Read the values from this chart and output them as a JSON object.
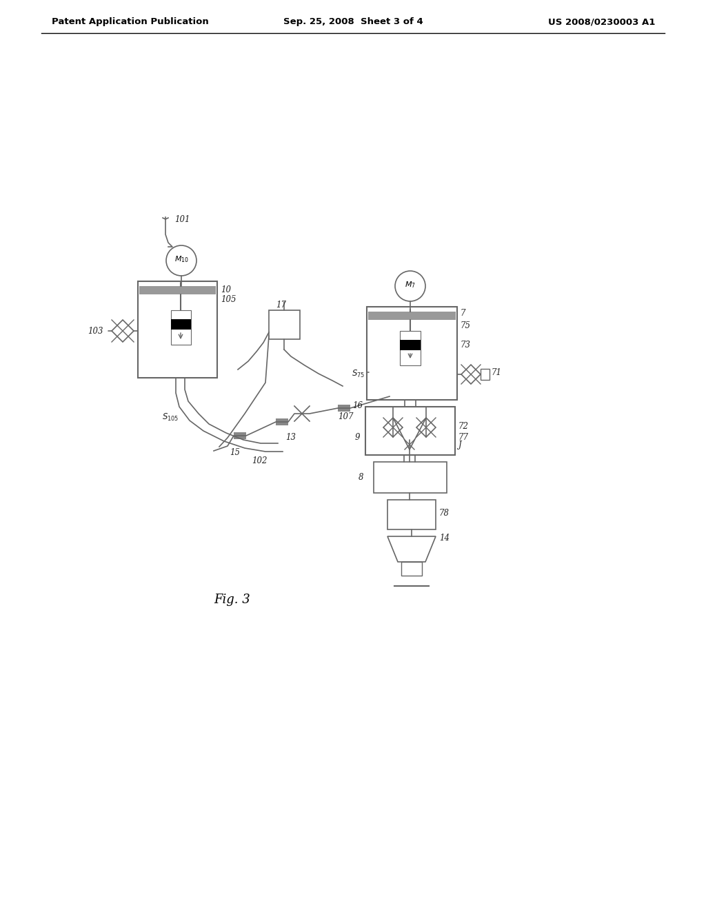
{
  "title_left": "Patent Application Publication",
  "title_center": "Sep. 25, 2008  Sheet 3 of 4",
  "title_right": "US 2008/0230003 A1",
  "fig_label": "Fig. 3",
  "background": "#ffffff",
  "line_color": "#666666",
  "label_color": "#333333"
}
